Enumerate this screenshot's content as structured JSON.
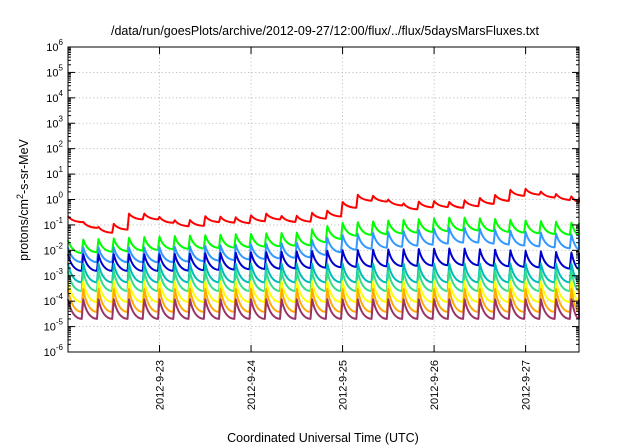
{
  "chart_data": {
    "type": "line",
    "title": "/data/run/goesPlots/archive/2012-09-27/12:00/flux/../flux/5daysMarsFluxes.txt",
    "xlabel": "Coordinated Universal Time (UTC)",
    "ylabel_parts": {
      "main": "protons/cm",
      "sup": "2",
      "rest": "-s-sr-MeV"
    },
    "yscale": "log",
    "ylim_exp": [
      -6,
      6
    ],
    "y_tick_base": "10",
    "y_tick_exponents": [
      "-6",
      "-5",
      "-4",
      "-3",
      "-2",
      "-1",
      "0",
      "1",
      "2",
      "3",
      "4",
      "5",
      "6"
    ],
    "xlim": [
      "2012-09-22T00:00",
      "2012-09-27T14:00"
    ],
    "x_ticks": [
      "2012-9-23",
      "2012-9-24",
      "2012-9-25",
      "2012-9-26",
      "2012-9-27"
    ],
    "grid": true,
    "legend": "none",
    "sawtooth_cycles_per_day": 6,
    "series": [
      {
        "color": "#ff0000",
        "times": [
          "2012-09-22T00:00",
          "2012-09-22T06:00",
          "2012-09-22T10:00",
          "2012-09-22T16:00",
          "2012-09-22T20:00",
          "2012-09-23T06:00",
          "2012-09-23T12:00",
          "2012-09-23T20:00",
          "2012-09-24T04:00",
          "2012-09-24T10:00",
          "2012-09-24T16:00",
          "2012-09-24T22:00",
          "2012-09-25T02:00",
          "2012-09-25T08:00",
          "2012-09-25T16:00",
          "2012-09-25T22:00",
          "2012-09-26T04:00",
          "2012-09-26T10:00",
          "2012-09-26T16:00",
          "2012-09-26T22:00",
          "2012-09-27T06:00",
          "2012-09-27T14:00"
        ],
        "peaks": [
          0.22,
          0.1,
          0.07,
          0.28,
          0.28,
          0.13,
          0.22,
          0.2,
          0.28,
          0.2,
          0.3,
          0.4,
          1.6,
          1.4,
          0.7,
          0.9,
          0.8,
          1.0,
          1.5,
          3.0,
          1.8,
          1.2
        ],
        "depth": 1.7
      },
      {
        "color": "#00ff00",
        "times": [
          "2012-09-22T00:00",
          "2012-09-23T00:00",
          "2012-09-24T12:00",
          "2012-09-25T00:00",
          "2012-09-26T06:00",
          "2012-09-27T14:00"
        ],
        "peaks": [
          0.025,
          0.035,
          0.05,
          0.12,
          0.2,
          0.12
        ],
        "depth": 3.2
      },
      {
        "color": "#3399ff",
        "times": [
          "2012-09-22T00:00",
          "2012-09-23T00:00",
          "2012-09-24T12:00",
          "2012-09-25T00:00",
          "2012-09-26T06:00",
          "2012-09-27T14:00"
        ],
        "peaks": [
          0.013,
          0.013,
          0.02,
          0.04,
          0.08,
          0.04
        ],
        "depth": 3.8
      },
      {
        "color": "#0000cc",
        "times": [
          "2012-09-22T00:00",
          "2012-09-23T00:00",
          "2012-09-24T12:00",
          "2012-09-25T00:00",
          "2012-09-26T06:00",
          "2012-09-27T14:00"
        ],
        "peaks": [
          0.007,
          0.007,
          0.009,
          0.01,
          0.012,
          0.008
        ],
        "depth": 4.5
      },
      {
        "color": "#00bbbb",
        "times": [
          "2012-09-22T00:00",
          "2012-09-27T14:00"
        ],
        "peaks": [
          0.003,
          0.003
        ],
        "depth": 5.5
      },
      {
        "color": "#33dd88",
        "times": [
          "2012-09-22T00:00",
          "2012-09-27T14:00"
        ],
        "peaks": [
          0.0015,
          0.0015
        ],
        "depth": 6.0
      },
      {
        "color": "#ffff00",
        "times": [
          "2012-09-22T00:00",
          "2012-09-27T14:00"
        ],
        "peaks": [
          0.0006,
          0.0006
        ],
        "depth": 6.5
      },
      {
        "color": "#ffaa00",
        "times": [
          "2012-09-22T00:00",
          "2012-09-27T14:00"
        ],
        "peaks": [
          0.0003,
          0.0003
        ],
        "depth": 8.0
      },
      {
        "color": "#993366",
        "times": [
          "2012-09-22T00:00",
          "2012-09-27T14:00"
        ],
        "peaks": [
          0.00012,
          0.00012
        ],
        "depth": 6.0
      }
    ]
  }
}
